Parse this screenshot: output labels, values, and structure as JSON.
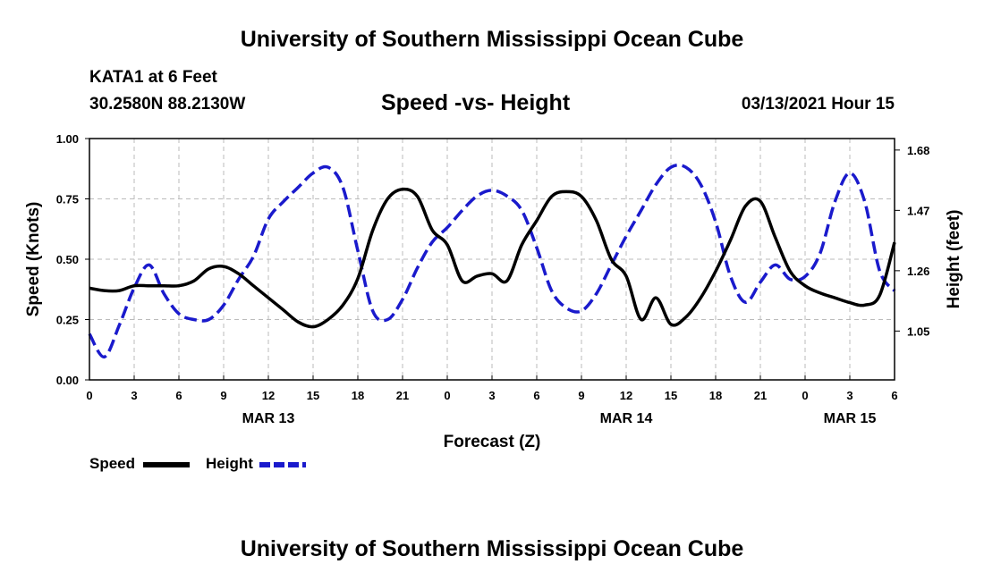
{
  "header": {
    "title": "University of Southern Mississippi Ocean Cube",
    "station": "KATA1 at 6 Feet",
    "coords": "30.2580N 88.2130W",
    "subtitle": "Speed -vs- Height",
    "datetime": "03/13/2021 Hour 15"
  },
  "footer": {
    "title": "University of Southern Mississippi Ocean Cube"
  },
  "colors": {
    "speed": "#000000",
    "height": "#1a1acc",
    "grid": "#bbbbbb"
  },
  "chart_data": {
    "type": "line",
    "title": "Speed -vs- Height",
    "xlabel": "Forecast (Z)",
    "ylabel": "Speed (Knots)",
    "y2label": "Height (feet)",
    "xlim": [
      0,
      54
    ],
    "ylim": [
      0,
      1.0
    ],
    "y2lim": [
      0.88,
      1.72
    ],
    "x_ticks": [
      0,
      3,
      6,
      9,
      12,
      15,
      18,
      21,
      24,
      27,
      30,
      33,
      36,
      39,
      42,
      45,
      48,
      51,
      54
    ],
    "x_tick_labels": [
      "0",
      "3",
      "6",
      "9",
      "12",
      "15",
      "18",
      "21",
      "0",
      "3",
      "6",
      "9",
      "12",
      "15",
      "18",
      "21",
      "0",
      "3",
      "6"
    ],
    "y_ticks": [
      0,
      0.25,
      0.5,
      0.75,
      1.0
    ],
    "y_tick_labels": [
      "0.00",
      "0.25",
      "0.50",
      "0.75",
      "1.00"
    ],
    "y2_ticks": [
      1.05,
      1.26,
      1.47,
      1.68
    ],
    "y2_tick_labels": [
      "1.05",
      "1.26",
      "1.47",
      "1.68"
    ],
    "day_labels": [
      {
        "x": 12,
        "label": "MAR 13"
      },
      {
        "x": 36,
        "label": "MAR 14"
      },
      {
        "x": 51,
        "label": "MAR 15"
      }
    ],
    "grid": true,
    "legend_position": "bottom-left",
    "series": [
      {
        "name": "Speed",
        "axis": "left",
        "style": "solid",
        "x": [
          0,
          1,
          2,
          3,
          4,
          5,
          6,
          7,
          8,
          9,
          10,
          11,
          12,
          13,
          14,
          15,
          16,
          17,
          18,
          19,
          20,
          21,
          22,
          23,
          24,
          25,
          26,
          27,
          28,
          29,
          30,
          31,
          32,
          33,
          34,
          35,
          36,
          37,
          38,
          39,
          40,
          41,
          42,
          43,
          44,
          45,
          46,
          47,
          48,
          49,
          50,
          51,
          52,
          53,
          54
        ],
        "values": [
          0.38,
          0.37,
          0.37,
          0.39,
          0.39,
          0.39,
          0.39,
          0.41,
          0.46,
          0.47,
          0.44,
          0.39,
          0.34,
          0.29,
          0.24,
          0.22,
          0.25,
          0.31,
          0.42,
          0.62,
          0.75,
          0.79,
          0.76,
          0.62,
          0.56,
          0.41,
          0.43,
          0.44,
          0.41,
          0.56,
          0.66,
          0.76,
          0.78,
          0.76,
          0.66,
          0.5,
          0.43,
          0.25,
          0.34,
          0.23,
          0.26,
          0.34,
          0.45,
          0.58,
          0.72,
          0.74,
          0.59,
          0.45,
          0.39,
          0.36,
          0.34,
          0.32,
          0.31,
          0.35,
          0.57
        ]
      },
      {
        "name": "Height",
        "axis": "right",
        "style": "dashed",
        "x": [
          0,
          1,
          2,
          3,
          4,
          5,
          6,
          7,
          8,
          9,
          10,
          11,
          12,
          13,
          14,
          15,
          16,
          17,
          18,
          19,
          20,
          21,
          22,
          23,
          24,
          25,
          26,
          27,
          28,
          29,
          30,
          31,
          32,
          33,
          34,
          35,
          36,
          37,
          38,
          39,
          40,
          41,
          42,
          43,
          44,
          45,
          46,
          47,
          48,
          49,
          50,
          51,
          52,
          53,
          54
        ],
        "values": [
          1.04,
          0.96,
          1.07,
          1.2,
          1.28,
          1.18,
          1.11,
          1.09,
          1.09,
          1.14,
          1.23,
          1.31,
          1.44,
          1.5,
          1.55,
          1.6,
          1.62,
          1.55,
          1.33,
          1.12,
          1.09,
          1.16,
          1.27,
          1.36,
          1.41,
          1.47,
          1.52,
          1.54,
          1.52,
          1.47,
          1.34,
          1.19,
          1.13,
          1.12,
          1.18,
          1.28,
          1.38,
          1.47,
          1.56,
          1.62,
          1.62,
          1.56,
          1.43,
          1.24,
          1.15,
          1.22,
          1.28,
          1.23,
          1.24,
          1.32,
          1.5,
          1.6,
          1.5,
          1.26,
          1.19
        ]
      }
    ]
  }
}
